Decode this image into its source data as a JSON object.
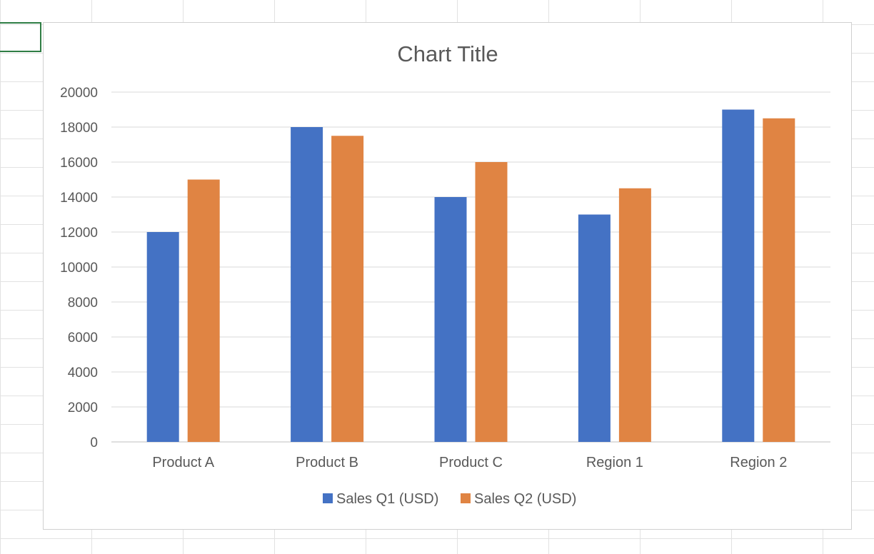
{
  "chart_data": {
    "type": "bar",
    "title": "Chart Title",
    "categories": [
      "Product A",
      "Product B",
      "Product C",
      "Region 1",
      "Region 2"
    ],
    "series": [
      {
        "name": "Sales Q1 (USD)",
        "color": "#4472C4",
        "values": [
          12000,
          18000,
          14000,
          13000,
          19000
        ]
      },
      {
        "name": "Sales Q2 (USD)",
        "color": "#E08443",
        "values": [
          15000,
          17500,
          16000,
          14500,
          18500
        ]
      }
    ],
    "yticks": [
      "0",
      "2000",
      "4000",
      "6000",
      "8000",
      "10000",
      "12000",
      "14000",
      "16000",
      "18000",
      "20000"
    ],
    "ylim": [
      0,
      20000
    ],
    "grid": true,
    "legend": "bottom"
  }
}
